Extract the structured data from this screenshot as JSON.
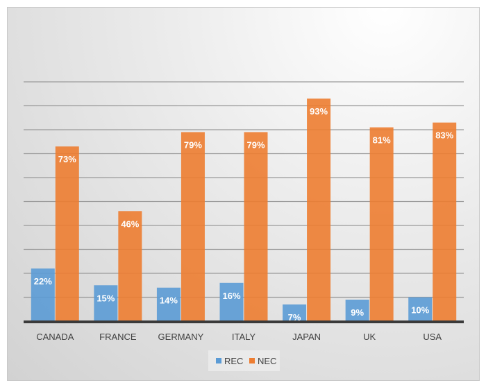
{
  "chart_data": {
    "type": "bar",
    "title": "",
    "xlabel": "",
    "ylabel": "",
    "categories": [
      "CANADA",
      "FRANCE",
      "GERMANY",
      "ITALY",
      "JAPAN",
      "UK",
      "USA"
    ],
    "series": [
      {
        "name": "REC",
        "values": [
          22,
          15,
          14,
          16,
          7,
          9,
          10
        ],
        "labels": [
          "22%",
          "15%",
          "14%",
          "16%",
          "7%",
          "9%",
          "10%"
        ],
        "color": "#5b9bd5"
      },
      {
        "name": "NEC",
        "values": [
          73,
          46,
          79,
          79,
          93,
          81,
          83
        ],
        "labels": [
          "73%",
          "46%",
          "79%",
          "79%",
          "93%",
          "81%",
          "83%"
        ],
        "color": "#ed7d31"
      }
    ],
    "ylim": [
      0,
      100
    ],
    "grid": true,
    "y_tick_labels_shown": false,
    "legend_placement": "bottom"
  }
}
